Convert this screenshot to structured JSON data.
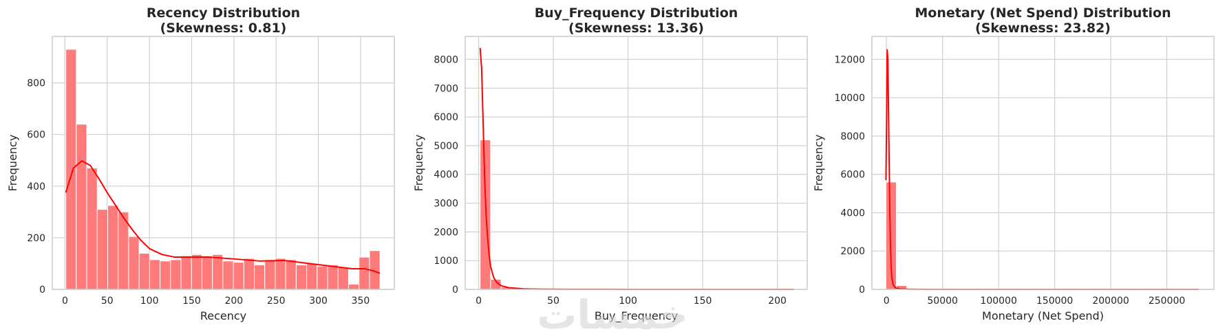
{
  "watermark": "خمسات",
  "colors": {
    "bar": "#ff7b7b",
    "bar_edge": "#ffffff",
    "kde": "#ff0000",
    "grid": "#d0d0d0",
    "frame": "#cccccc"
  },
  "chart_data": [
    {
      "type": "bar",
      "title": "Recency Distribution",
      "subtitle": "(Skewness: 0.81)",
      "xlabel": "Recency",
      "ylabel": "Frequency",
      "xlim": [
        -15,
        390
      ],
      "ylim": [
        0,
        980
      ],
      "xticks": [
        0,
        50,
        100,
        150,
        200,
        250,
        300,
        350
      ],
      "yticks": [
        0,
        200,
        400,
        600,
        800
      ],
      "bins": {
        "edges": [
          1,
          13.4,
          25.8,
          38.2,
          50.6,
          63,
          75.4,
          87.8,
          100.2,
          112.6,
          125,
          137.4,
          149.8,
          162.2,
          174.6,
          187,
          199.4,
          211.8,
          224.2,
          236.6,
          249,
          261.4,
          273.8,
          286.2,
          298.6,
          311,
          323.4,
          335.8,
          348.2,
          360.6,
          373
        ],
        "counts": [
          930,
          640,
          470,
          310,
          325,
          300,
          205,
          140,
          115,
          110,
          115,
          130,
          135,
          130,
          135,
          110,
          105,
          120,
          95,
          115,
          120,
          115,
          95,
          100,
          90,
          95,
          85,
          20,
          125,
          150
        ]
      },
      "kde": {
        "x": [
          1,
          10,
          20,
          30,
          40,
          50,
          60,
          70,
          80,
          90,
          100,
          115,
          130,
          150,
          170,
          200,
          230,
          260,
          290,
          320,
          340,
          355,
          365,
          373
        ],
        "y": [
          375,
          470,
          498,
          480,
          430,
          375,
          325,
          275,
          230,
          190,
          158,
          135,
          125,
          125,
          125,
          118,
          110,
          112,
          100,
          88,
          80,
          80,
          72,
          62
        ]
      }
    },
    {
      "type": "bar",
      "title": "Buy_Frequency Distribution",
      "subtitle": "(Skewness: 13.36)",
      "xlabel": "Buy_Frequency",
      "ylabel": "Frequency",
      "xlim": [
        -9,
        220
      ],
      "ylim": [
        0,
        8800
      ],
      "xticks": [
        0,
        50,
        100,
        150,
        200
      ],
      "yticks": [
        0,
        1000,
        2000,
        3000,
        4000,
        5000,
        6000,
        7000,
        8000
      ],
      "bins": {
        "edges": [
          1,
          8,
          15,
          22,
          29,
          36,
          43,
          50,
          57,
          64,
          71,
          78,
          85,
          92,
          99,
          106,
          113,
          120,
          127,
          134,
          141,
          148,
          155,
          162,
          169,
          176,
          183,
          190,
          197,
          204,
          211
        ],
        "counts": [
          5200,
          350,
          80,
          30,
          12,
          8,
          5,
          3,
          2,
          2,
          1,
          1,
          1,
          1,
          0,
          1,
          0,
          0,
          0,
          0,
          0,
          0,
          0,
          0,
          0,
          0,
          0,
          0,
          0,
          1
        ]
      },
      "kde": {
        "x": [
          1,
          2,
          3,
          4,
          5,
          6,
          7,
          8,
          10,
          12,
          15,
          20,
          30,
          40,
          60,
          100,
          150,
          211
        ],
        "y": [
          8400,
          7700,
          5800,
          3900,
          2600,
          1800,
          1200,
          800,
          420,
          250,
          130,
          60,
          20,
          8,
          3,
          1,
          0,
          0
        ]
      }
    },
    {
      "type": "bar",
      "title": "Monetary (Net Spend) Distribution",
      "subtitle": "(Skewness: 23.82)",
      "xlabel": "Monetary (Net Spend)",
      "ylabel": "Frequency",
      "xlim": [
        -13000,
        292000
      ],
      "ylim": [
        0,
        13200
      ],
      "xticks": [
        0,
        50000,
        100000,
        150000,
        200000,
        250000
      ],
      "yticks": [
        0,
        2000,
        4000,
        6000,
        8000,
        10000,
        12000
      ],
      "bins": {
        "edges": [
          -500,
          8800,
          18100,
          27400,
          36700,
          46000,
          55300,
          64600,
          73900,
          83200,
          92500,
          101800,
          111100,
          120400,
          129700,
          139000,
          148300,
          157600,
          166900,
          176200,
          185500,
          194800,
          204100,
          213400,
          222700,
          232000,
          241300,
          250600,
          259900,
          269200,
          278500
        ],
        "counts": [
          5600,
          200,
          60,
          20,
          10,
          5,
          3,
          2,
          2,
          1,
          1,
          1,
          0,
          0,
          0,
          0,
          0,
          0,
          0,
          0,
          0,
          0,
          0,
          0,
          0,
          0,
          0,
          0,
          0,
          1
        ]
      },
      "kde": {
        "x": [
          -500,
          0,
          600,
          1200,
          1800,
          2400,
          3000,
          3600,
          4200,
          4800,
          6000,
          8000,
          12000,
          20000,
          40000,
          100000,
          200000,
          278500
        ],
        "y": [
          5700,
          8300,
          12500,
          12000,
          9500,
          6500,
          4000,
          2200,
          1100,
          600,
          250,
          80,
          25,
          8,
          2,
          0,
          0,
          0
        ]
      }
    }
  ]
}
